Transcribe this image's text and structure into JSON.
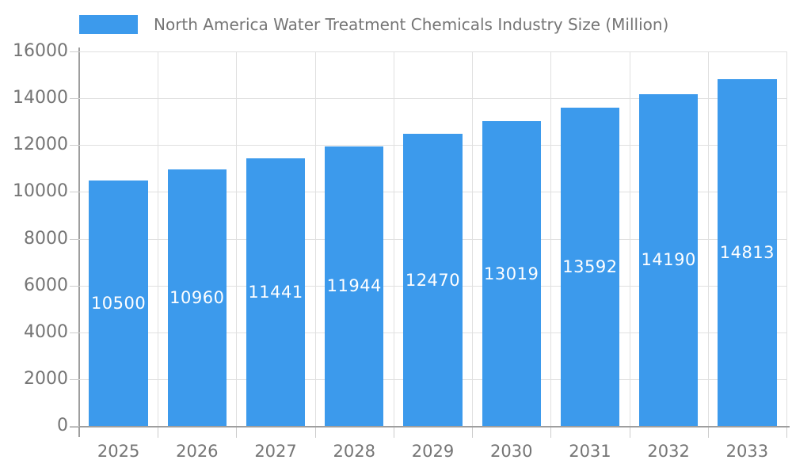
{
  "legend": {
    "label": "North America Water Treatment Chemicals Industry Size (Million)"
  },
  "chart_data": {
    "type": "bar",
    "title": "North America Water Treatment Chemicals Industry Size (Million)",
    "categories": [
      "2025",
      "2026",
      "2027",
      "2028",
      "2029",
      "2030",
      "2031",
      "2032",
      "2033"
    ],
    "values": [
      10500,
      10960,
      11441,
      11944,
      12470,
      13019,
      13592,
      14190,
      14813
    ],
    "xlabel": "",
    "ylabel": "",
    "ylim": [
      0,
      16000
    ],
    "yticks": [
      0,
      2000,
      4000,
      6000,
      8000,
      10000,
      12000,
      14000,
      16000
    ],
    "grid": true,
    "legend_position": "top",
    "value_labels": "inside-center",
    "colors": {
      "bar": "#3c9aec",
      "value_label": "#ffffff",
      "axis_text": "#757575",
      "gridline": "#e0e0e0",
      "axis_line": "#9e9e9e",
      "tick": "#cccccc",
      "background": "#ffffff"
    }
  }
}
